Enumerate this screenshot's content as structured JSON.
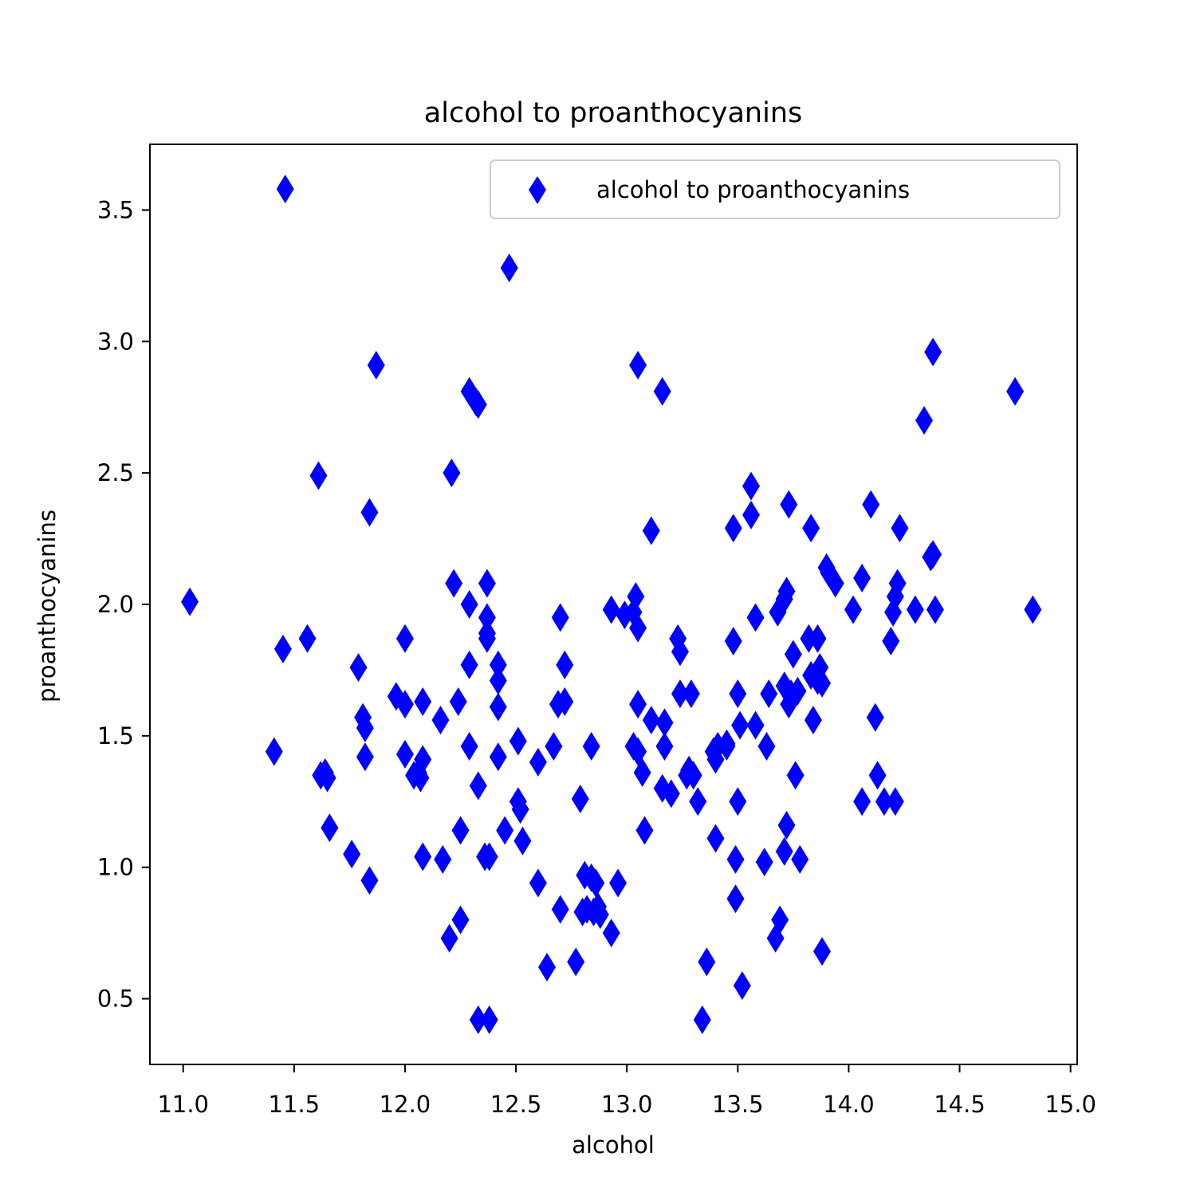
{
  "chart_data": {
    "type": "scatter",
    "title": "alcohol to proanthocyanins",
    "xlabel": "alcohol",
    "ylabel": "proanthocyanins",
    "xlim": [
      10.85,
      15.03
    ],
    "ylim": [
      0.25,
      3.75
    ],
    "xticks": [
      "11.0",
      "11.5",
      "12.0",
      "12.5",
      "13.0",
      "13.5",
      "14.0",
      "14.5",
      "15.0"
    ],
    "yticks": [
      "0.5",
      "1.0",
      "1.5",
      "2.0",
      "2.5",
      "3.0",
      "3.5"
    ],
    "grid": false,
    "legend_position": "top-right",
    "series": [
      {
        "name": "alcohol to proanthocyanins",
        "color": "#0000ff",
        "marker": "thin-diamond",
        "points": [
          [
            11.03,
            2.01
          ],
          [
            11.41,
            1.44
          ],
          [
            11.45,
            1.83
          ],
          [
            11.46,
            3.58
          ],
          [
            11.56,
            1.87
          ],
          [
            11.61,
            2.49
          ],
          [
            11.62,
            1.35
          ],
          [
            11.64,
            1.36
          ],
          [
            11.65,
            1.34
          ],
          [
            11.66,
            1.15
          ],
          [
            11.76,
            1.05
          ],
          [
            11.79,
            1.76
          ],
          [
            11.81,
            1.57
          ],
          [
            11.82,
            1.53
          ],
          [
            11.82,
            1.42
          ],
          [
            11.84,
            2.35
          ],
          [
            11.84,
            0.95
          ],
          [
            11.87,
            2.91
          ],
          [
            11.96,
            1.65
          ],
          [
            12.0,
            1.87
          ],
          [
            12.0,
            1.62
          ],
          [
            12.0,
            1.43
          ],
          [
            12.04,
            1.35
          ],
          [
            12.06,
            1.36
          ],
          [
            12.07,
            1.34
          ],
          [
            12.08,
            1.41
          ],
          [
            12.08,
            1.04
          ],
          [
            12.08,
            1.63
          ],
          [
            12.16,
            1.56
          ],
          [
            12.17,
            1.03
          ],
          [
            12.2,
            0.73
          ],
          [
            12.21,
            2.5
          ],
          [
            12.22,
            2.08
          ],
          [
            12.24,
            1.63
          ],
          [
            12.25,
            1.14
          ],
          [
            12.25,
            0.8
          ],
          [
            12.29,
            2.81
          ],
          [
            12.29,
            2.0
          ],
          [
            12.29,
            1.77
          ],
          [
            12.29,
            1.46
          ],
          [
            12.32,
            2.77
          ],
          [
            12.33,
            2.76
          ],
          [
            12.33,
            1.31
          ],
          [
            12.33,
            0.42
          ],
          [
            12.36,
            1.04
          ],
          [
            12.37,
            2.08
          ],
          [
            12.37,
            1.95
          ],
          [
            12.37,
            1.89
          ],
          [
            12.37,
            1.87
          ],
          [
            12.38,
            0.42
          ],
          [
            12.38,
            1.04
          ],
          [
            12.42,
            1.77
          ],
          [
            12.42,
            1.71
          ],
          [
            12.42,
            1.61
          ],
          [
            12.42,
            1.42
          ],
          [
            12.45,
            1.14
          ],
          [
            12.47,
            3.28
          ],
          [
            12.51,
            1.48
          ],
          [
            12.51,
            1.25
          ],
          [
            12.52,
            1.22
          ],
          [
            12.53,
            1.1
          ],
          [
            12.6,
            1.4
          ],
          [
            12.6,
            0.94
          ],
          [
            12.64,
            0.62
          ],
          [
            12.67,
            1.46
          ],
          [
            12.69,
            1.62
          ],
          [
            12.7,
            1.95
          ],
          [
            12.7,
            0.84
          ],
          [
            12.72,
            1.77
          ],
          [
            12.72,
            1.63
          ],
          [
            12.77,
            0.64
          ],
          [
            12.79,
            1.26
          ],
          [
            12.8,
            0.83
          ],
          [
            12.81,
            0.97
          ],
          [
            12.82,
            0.84
          ],
          [
            12.84,
            1.46
          ],
          [
            12.84,
            0.96
          ],
          [
            12.85,
            0.83
          ],
          [
            12.86,
            0.94
          ],
          [
            12.87,
            0.85
          ],
          [
            12.88,
            0.82
          ],
          [
            12.93,
            0.75
          ],
          [
            12.93,
            1.98
          ],
          [
            12.96,
            0.94
          ],
          [
            12.99,
            1.96
          ],
          [
            13.03,
            1.46
          ],
          [
            13.03,
            1.97
          ],
          [
            13.04,
            2.03
          ],
          [
            13.05,
            1.62
          ],
          [
            13.05,
            1.91
          ],
          [
            13.05,
            2.91
          ],
          [
            13.05,
            1.44
          ],
          [
            13.07,
            1.36
          ],
          [
            13.08,
            1.14
          ],
          [
            13.11,
            2.28
          ],
          [
            13.11,
            1.56
          ],
          [
            13.16,
            1.3
          ],
          [
            13.16,
            2.81
          ],
          [
            13.17,
            1.46
          ],
          [
            13.17,
            1.55
          ],
          [
            13.2,
            1.28
          ],
          [
            13.23,
            1.87
          ],
          [
            13.24,
            1.82
          ],
          [
            13.24,
            1.66
          ],
          [
            13.27,
            1.35
          ],
          [
            13.28,
            1.37
          ],
          [
            13.29,
            1.66
          ],
          [
            13.3,
            1.35
          ],
          [
            13.32,
            1.25
          ],
          [
            13.34,
            0.42
          ],
          [
            13.36,
            0.64
          ],
          [
            13.39,
            1.44
          ],
          [
            13.4,
            1.41
          ],
          [
            13.4,
            1.11
          ],
          [
            13.41,
            1.46
          ],
          [
            13.45,
            1.46
          ],
          [
            13.45,
            1.47
          ],
          [
            13.48,
            1.86
          ],
          [
            13.48,
            2.29
          ],
          [
            13.49,
            1.03
          ],
          [
            13.49,
            0.88
          ],
          [
            13.5,
            1.66
          ],
          [
            13.5,
            1.25
          ],
          [
            13.51,
            1.54
          ],
          [
            13.52,
            0.55
          ],
          [
            13.56,
            2.45
          ],
          [
            13.56,
            2.34
          ],
          [
            13.58,
            1.95
          ],
          [
            13.58,
            1.54
          ],
          [
            13.62,
            1.02
          ],
          [
            13.63,
            1.46
          ],
          [
            13.64,
            1.66
          ],
          [
            13.67,
            0.73
          ],
          [
            13.68,
            1.97
          ],
          [
            13.69,
            0.8
          ],
          [
            13.71,
            1.06
          ],
          [
            13.71,
            1.69
          ],
          [
            13.71,
            2.02
          ],
          [
            13.72,
            1.16
          ],
          [
            13.72,
            2.05
          ],
          [
            13.73,
            1.62
          ],
          [
            13.73,
            2.38
          ],
          [
            13.74,
            1.66
          ],
          [
            13.75,
            1.81
          ],
          [
            13.76,
            1.35
          ],
          [
            13.77,
            1.67
          ],
          [
            13.78,
            1.03
          ],
          [
            13.82,
            1.87
          ],
          [
            13.83,
            2.29
          ],
          [
            13.83,
            1.73
          ],
          [
            13.84,
            1.56
          ],
          [
            13.86,
            1.87
          ],
          [
            13.86,
            1.71
          ],
          [
            13.87,
            1.76
          ],
          [
            13.88,
            1.7
          ],
          [
            13.88,
            0.68
          ],
          [
            13.9,
            2.14
          ],
          [
            13.91,
            2.12
          ],
          [
            13.94,
            2.08
          ],
          [
            14.02,
            1.98
          ],
          [
            14.06,
            2.1
          ],
          [
            14.06,
            1.25
          ],
          [
            14.1,
            2.38
          ],
          [
            14.12,
            1.57
          ],
          [
            14.13,
            1.35
          ],
          [
            14.16,
            1.25
          ],
          [
            14.19,
            1.86
          ],
          [
            14.2,
            1.97
          ],
          [
            14.21,
            1.25
          ],
          [
            14.21,
            2.03
          ],
          [
            14.22,
            2.08
          ],
          [
            14.23,
            2.29
          ],
          [
            14.3,
            1.98
          ],
          [
            14.34,
            2.7
          ],
          [
            14.37,
            2.18
          ],
          [
            14.38,
            2.96
          ],
          [
            14.38,
            2.19
          ],
          [
            14.39,
            1.98
          ],
          [
            14.75,
            2.81
          ],
          [
            14.83,
            1.98
          ]
        ]
      }
    ]
  }
}
